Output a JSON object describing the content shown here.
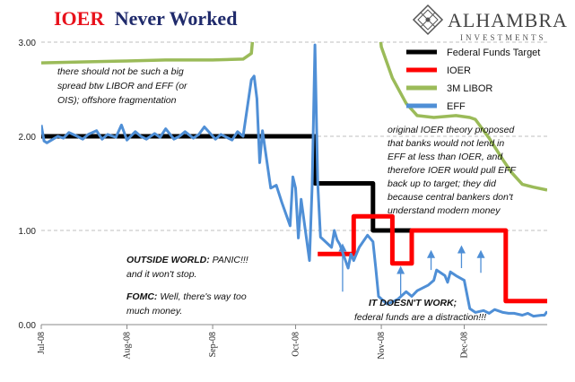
{
  "header": {
    "title_red": "IOER",
    "title_navy": "Never Worked"
  },
  "logo": {
    "name": "ALHAMBRA",
    "subtitle": "INVESTMENTS"
  },
  "colors": {
    "fed_funds_target": "#000000",
    "ioer": "#ff0000",
    "libor": "#9bbb59",
    "eff": "#4f8fd6",
    "grid": "#bfbfbf"
  },
  "annotations": {
    "spread_note": [
      "there should not be such a big",
      "spread btw LIBOR and EFF (or",
      "OIS); offshore fragmentation"
    ],
    "theory_note": [
      "original IOER theory proposed",
      "that banks would not lend in",
      "EFF at less than IOER, and",
      "therefore IOER would pull EFF",
      "back up to target; they did",
      "because central bankers don't",
      "understand modern money"
    ],
    "outside_world": {
      "bold": "OUTSIDE WORLD:",
      "text": "  PANIC!!!",
      "line2": "and it won't stop."
    },
    "fomc": {
      "bold": "FOMC:",
      "text": "  Well, there's way too",
      "line2": "much money."
    },
    "doesnt_work": {
      "bold": "IT DOESN'T WORK;",
      "line2": "federal funds are a distraction!!!"
    }
  },
  "chart_data": {
    "type": "line",
    "title": "IOER Never Worked",
    "xlabel": "",
    "ylabel": "",
    "x_range": [
      "2008-07-01",
      "2008-12-31"
    ],
    "ylim": [
      0,
      3
    ],
    "y_ticks": [
      "0.00",
      "1.00",
      "2.00",
      "3.00"
    ],
    "x_ticks": [
      {
        "label": "Jul-08",
        "date": "2008-07-01"
      },
      {
        "label": "Aug-08",
        "date": "2008-08-01"
      },
      {
        "label": "Sep-08",
        "date": "2008-09-01"
      },
      {
        "label": "Oct-08",
        "date": "2008-10-01"
      },
      {
        "label": "Nov-08",
        "date": "2008-11-01"
      },
      {
        "label": "Dec-08",
        "date": "2008-12-01"
      }
    ],
    "grid": "horizontal dashed",
    "legend_position": "top-right",
    "series": [
      {
        "name": "Federal Funds Target",
        "key": "fed_funds_target",
        "step": true,
        "points": [
          [
            "2008-07-01",
            2.0
          ],
          [
            "2008-10-08",
            2.0
          ],
          [
            "2008-10-08",
            1.5
          ],
          [
            "2008-10-29",
            1.5
          ],
          [
            "2008-10-29",
            1.0
          ],
          [
            "2008-12-16",
            1.0
          ]
        ]
      },
      {
        "name": "IOER",
        "key": "ioer",
        "step": true,
        "points": [
          [
            "2008-10-09",
            0.75
          ],
          [
            "2008-10-22",
            0.75
          ],
          [
            "2008-10-22",
            1.15
          ],
          [
            "2008-11-05",
            1.15
          ],
          [
            "2008-11-05",
            0.65
          ],
          [
            "2008-11-12",
            0.65
          ],
          [
            "2008-11-12",
            1.0
          ],
          [
            "2008-12-16",
            1.0
          ],
          [
            "2008-12-16",
            0.25
          ],
          [
            "2008-12-31",
            0.25
          ]
        ]
      },
      {
        "name": "3M LIBOR",
        "key": "libor",
        "step": false,
        "points": [
          [
            "2008-07-01",
            2.78
          ],
          [
            "2008-07-15",
            2.79
          ],
          [
            "2008-08-01",
            2.8
          ],
          [
            "2008-08-15",
            2.81
          ],
          [
            "2008-09-01",
            2.81
          ],
          [
            "2008-09-12",
            2.82
          ],
          [
            "2008-09-15",
            2.88
          ],
          [
            "2008-09-16",
            3.2
          ],
          [
            "2008-10-31",
            3.2
          ],
          [
            "2008-11-01",
            2.95
          ],
          [
            "2008-11-05",
            2.62
          ],
          [
            "2008-11-10",
            2.35
          ],
          [
            "2008-11-14",
            2.22
          ],
          [
            "2008-11-20",
            2.2
          ],
          [
            "2008-11-28",
            2.22
          ],
          [
            "2008-12-03",
            2.2
          ],
          [
            "2008-12-05",
            2.18
          ],
          [
            "2008-12-10",
            1.98
          ],
          [
            "2008-12-15",
            1.75
          ],
          [
            "2008-12-18",
            1.62
          ],
          [
            "2008-12-22",
            1.49
          ],
          [
            "2008-12-26",
            1.46
          ],
          [
            "2008-12-31",
            1.43
          ]
        ]
      },
      {
        "name": "EFF",
        "key": "eff",
        "step": false,
        "points": [
          [
            "2008-07-01",
            2.12
          ],
          [
            "2008-07-02",
            1.95
          ],
          [
            "2008-07-03",
            1.93
          ],
          [
            "2008-07-07",
            2.0
          ],
          [
            "2008-07-09",
            1.98
          ],
          [
            "2008-07-11",
            2.04
          ],
          [
            "2008-07-14",
            2.0
          ],
          [
            "2008-07-16",
            1.97
          ],
          [
            "2008-07-18",
            2.02
          ],
          [
            "2008-07-21",
            2.06
          ],
          [
            "2008-07-23",
            1.97
          ],
          [
            "2008-07-25",
            2.02
          ],
          [
            "2008-07-28",
            1.99
          ],
          [
            "2008-07-30",
            2.12
          ],
          [
            "2008-08-01",
            1.96
          ],
          [
            "2008-08-04",
            2.05
          ],
          [
            "2008-08-06",
            2.0
          ],
          [
            "2008-08-08",
            1.97
          ],
          [
            "2008-08-11",
            2.03
          ],
          [
            "2008-08-13",
            1.99
          ],
          [
            "2008-08-15",
            2.08
          ],
          [
            "2008-08-18",
            1.97
          ],
          [
            "2008-08-20",
            2.0
          ],
          [
            "2008-08-22",
            2.05
          ],
          [
            "2008-08-25",
            1.98
          ],
          [
            "2008-08-27",
            2.02
          ],
          [
            "2008-08-29",
            2.1
          ],
          [
            "2008-09-02",
            1.97
          ],
          [
            "2008-09-04",
            2.02
          ],
          [
            "2008-09-08",
            1.96
          ],
          [
            "2008-09-10",
            2.05
          ],
          [
            "2008-09-12",
            2.0
          ],
          [
            "2008-09-15",
            2.6
          ],
          [
            "2008-09-16",
            2.64
          ],
          [
            "2008-09-17",
            2.4
          ],
          [
            "2008-09-18",
            1.72
          ],
          [
            "2008-09-19",
            2.06
          ],
          [
            "2008-09-22",
            1.45
          ],
          [
            "2008-09-24",
            1.48
          ],
          [
            "2008-09-26",
            1.3
          ],
          [
            "2008-09-29",
            1.05
          ],
          [
            "2008-09-30",
            1.57
          ],
          [
            "2008-10-01",
            1.45
          ],
          [
            "2008-10-02",
            0.92
          ],
          [
            "2008-10-03",
            1.33
          ],
          [
            "2008-10-06",
            0.68
          ],
          [
            "2008-10-07",
            1.48
          ],
          [
            "2008-10-08",
            2.97
          ],
          [
            "2008-10-09",
            1.5
          ],
          [
            "2008-10-10",
            0.93
          ],
          [
            "2008-10-14",
            0.82
          ],
          [
            "2008-10-15",
            1.0
          ],
          [
            "2008-10-16",
            0.9
          ],
          [
            "2008-10-17",
            0.85
          ],
          [
            "2008-10-20",
            0.6
          ],
          [
            "2008-10-21",
            0.75
          ],
          [
            "2008-10-22",
            0.68
          ],
          [
            "2008-10-24",
            0.82
          ],
          [
            "2008-10-27",
            0.95
          ],
          [
            "2008-10-29",
            0.88
          ],
          [
            "2008-10-30",
            0.6
          ],
          [
            "2008-10-31",
            0.3
          ],
          [
            "2008-11-03",
            0.22
          ],
          [
            "2008-11-05",
            0.24
          ],
          [
            "2008-11-07",
            0.27
          ],
          [
            "2008-11-10",
            0.35
          ],
          [
            "2008-11-12",
            0.3
          ],
          [
            "2008-11-14",
            0.36
          ],
          [
            "2008-11-18",
            0.42
          ],
          [
            "2008-11-20",
            0.47
          ],
          [
            "2008-11-21",
            0.58
          ],
          [
            "2008-11-24",
            0.52
          ],
          [
            "2008-11-25",
            0.45
          ],
          [
            "2008-11-26",
            0.56
          ],
          [
            "2008-11-28",
            0.52
          ],
          [
            "2008-12-01",
            0.47
          ],
          [
            "2008-12-03",
            0.17
          ],
          [
            "2008-12-05",
            0.13
          ],
          [
            "2008-12-08",
            0.15
          ],
          [
            "2008-12-10",
            0.12
          ],
          [
            "2008-12-12",
            0.16
          ],
          [
            "2008-12-15",
            0.13
          ],
          [
            "2008-12-17",
            0.12
          ],
          [
            "2008-12-19",
            0.12
          ],
          [
            "2008-12-22",
            0.1
          ],
          [
            "2008-12-24",
            0.12
          ],
          [
            "2008-12-26",
            0.09
          ],
          [
            "2008-12-29",
            0.1
          ],
          [
            "2008-12-30",
            0.1
          ],
          [
            "2008-12-31",
            0.14
          ]
        ]
      }
    ],
    "arrows": [
      {
        "date": "2008-10-18",
        "from": 0.35,
        "to": 0.82
      },
      {
        "date": "2008-11-08",
        "from": 0.3,
        "to": 0.58
      },
      {
        "date": "2008-11-19",
        "from": 0.58,
        "to": 0.75
      },
      {
        "date": "2008-11-30",
        "from": 0.6,
        "to": 0.8
      },
      {
        "date": "2008-12-07",
        "from": 0.55,
        "to": 0.75
      }
    ]
  }
}
